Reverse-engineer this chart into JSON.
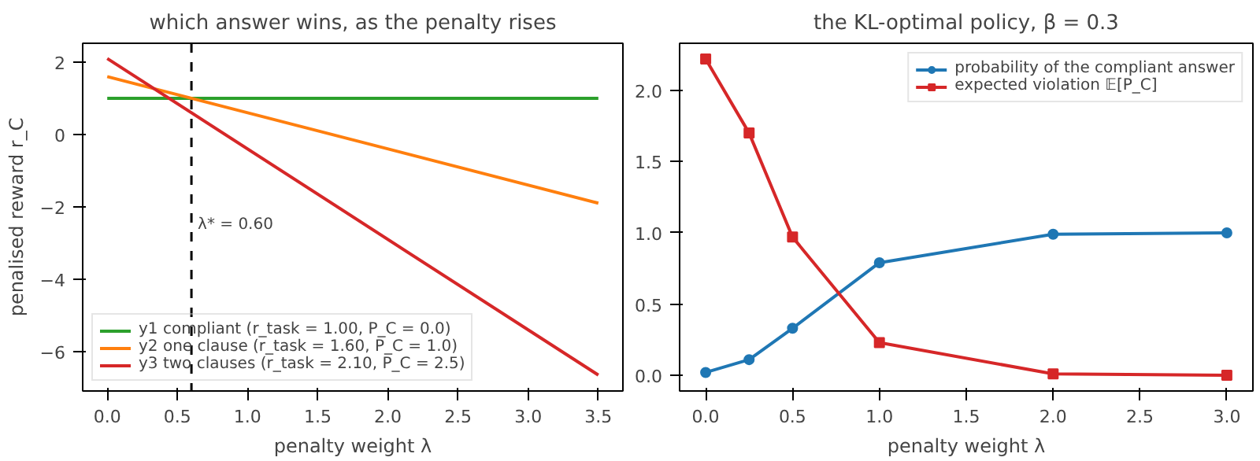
{
  "chart_data": [
    {
      "type": "line",
      "title": "which answer wins, as the penalty rises",
      "xlabel": "penalty weight λ",
      "ylabel": "penalised reward r_C",
      "x": [
        0,
        3.5
      ],
      "series": [
        {
          "name": "y1 compliant (r_task = 1.00, P_C = 0.0)",
          "color": "#2ca02c",
          "values": [
            1.0,
            1.0
          ]
        },
        {
          "name": "y2 one clause (r_task = 1.60, P_C = 1.0)",
          "color": "#ff7f0e",
          "values": [
            1.6,
            -1.9
          ]
        },
        {
          "name": "y3 two clauses (r_task = 2.10, P_C = 2.5)",
          "color": "#d62728",
          "values": [
            2.1,
            -6.65
          ]
        }
      ],
      "xlim": [
        -0.175,
        3.675
      ],
      "xticks": [
        {
          "value": 0,
          "label": "0.0"
        },
        {
          "value": 0.5,
          "label": "0.5"
        },
        {
          "value": 1,
          "label": "1.0"
        },
        {
          "value": 1.5,
          "label": "1.5"
        },
        {
          "value": 2,
          "label": "2.0"
        },
        {
          "value": 2.5,
          "label": "2.5"
        },
        {
          "value": 3,
          "label": "3.0"
        },
        {
          "value": 3.5,
          "label": "3.5"
        }
      ],
      "ylim": [
        -7.09,
        2.52
      ],
      "yticks": [
        -6,
        -4,
        -2,
        0,
        2
      ],
      "ref_lines": [
        {
          "axis": "x",
          "value": 0.6,
          "label": "λ* = 0.60",
          "color": "#000000",
          "line_style": "dashed"
        }
      ],
      "legend": "bottom left",
      "marker": "none",
      "line_style": "solid"
    },
    {
      "type": "line",
      "title": "the KL-optimal policy, β = 0.3",
      "xlabel": "penalty weight λ",
      "x": [
        0,
        0.25,
        0.5,
        1,
        2,
        3
      ],
      "series": [
        {
          "name": "probability of the compliant answer",
          "color": "#1f77b4",
          "values": [
            0.02,
            0.11,
            0.33,
            0.79,
            0.99,
            1.0
          ],
          "marker": "circle"
        },
        {
          "name": "expected violation 𝔼[P_C]",
          "color": "#d62728",
          "values": [
            2.22,
            1.7,
            0.97,
            0.23,
            0.01,
            0.0
          ],
          "marker": "square"
        }
      ],
      "xlim": [
        -0.15,
        3.15
      ],
      "xticks": [
        {
          "value": 0,
          "label": "0.0"
        },
        {
          "value": 0.5,
          "label": "0.5"
        },
        {
          "value": 1,
          "label": "1.0"
        },
        {
          "value": 1.5,
          "label": "1.5"
        },
        {
          "value": 2,
          "label": "2.0"
        },
        {
          "value": 2.5,
          "label": "2.5"
        },
        {
          "value": 3,
          "label": "3.0"
        }
      ],
      "ylim": [
        -0.11,
        2.33
      ],
      "yticks": [
        {
          "value": 0,
          "label": "0.0"
        },
        {
          "value": 0.5,
          "label": "0.5"
        },
        {
          "value": 1,
          "label": "1.0"
        },
        {
          "value": 1.5,
          "label": "1.5"
        },
        {
          "value": 2,
          "label": "2.0"
        }
      ],
      "legend": "top right",
      "line_style": "solid"
    }
  ]
}
